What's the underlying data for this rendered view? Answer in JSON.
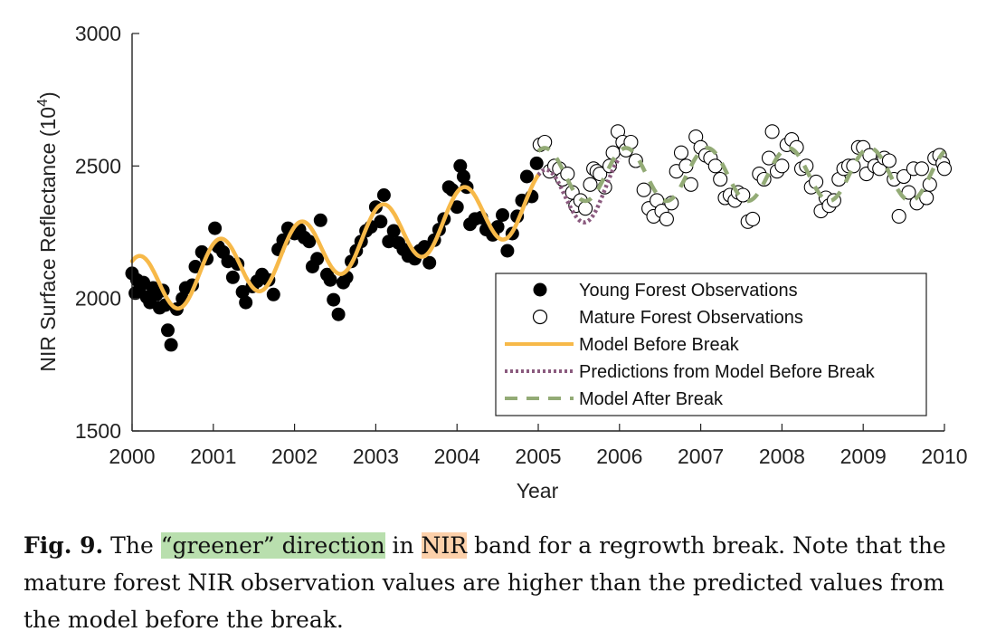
{
  "chart_data": {
    "type": "scatter",
    "xlabel": "Year",
    "ylabel": "NIR Surface Reflectance (10",
    "ylabel_exponent": "4",
    "ylabel_close": ")",
    "xlim": [
      2000,
      2010
    ],
    "ylim": [
      1500,
      3000
    ],
    "x_ticks": [
      2000,
      2001,
      2002,
      2003,
      2004,
      2005,
      2006,
      2007,
      2008,
      2009,
      2010
    ],
    "y_ticks": [
      1500,
      2000,
      2500,
      3000
    ],
    "grid": false,
    "legend_position": "lower-right",
    "series": [
      {
        "name": "Young Forest Observations",
        "kind": "points",
        "marker": "filled-circle",
        "color": "#000000",
        "points": [
          [
            2000.0,
            2095
          ],
          [
            2000.04,
            2020
          ],
          [
            2000.06,
            2070
          ],
          [
            2000.1,
            2045
          ],
          [
            2000.14,
            2060
          ],
          [
            2000.18,
            2005
          ],
          [
            2000.22,
            1985
          ],
          [
            2000.26,
            2040
          ],
          [
            2000.3,
            2015
          ],
          [
            2000.34,
            1965
          ],
          [
            2000.38,
            2030
          ],
          [
            2000.41,
            1975
          ],
          [
            2000.44,
            1880
          ],
          [
            2000.48,
            1825
          ],
          [
            2000.55,
            1960
          ],
          [
            2000.62,
            2000
          ],
          [
            2000.66,
            2040
          ],
          [
            2000.74,
            2050
          ],
          [
            2000.78,
            2120
          ],
          [
            2000.86,
            2175
          ],
          [
            2000.92,
            2150
          ],
          [
            2001.02,
            2265
          ],
          [
            2001.06,
            2195
          ],
          [
            2001.12,
            2175
          ],
          [
            2001.18,
            2140
          ],
          [
            2001.24,
            2080
          ],
          [
            2001.3,
            2130
          ],
          [
            2001.36,
            2025
          ],
          [
            2001.4,
            1985
          ],
          [
            2001.48,
            2045
          ],
          [
            2001.54,
            2065
          ],
          [
            2001.6,
            2090
          ],
          [
            2001.68,
            2070
          ],
          [
            2001.74,
            2015
          ],
          [
            2001.8,
            2185
          ],
          [
            2001.86,
            2220
          ],
          [
            2001.92,
            2265
          ],
          [
            2002.0,
            2245
          ],
          [
            2002.06,
            2260
          ],
          [
            2002.12,
            2230
          ],
          [
            2002.18,
            2215
          ],
          [
            2002.22,
            2120
          ],
          [
            2002.28,
            2150
          ],
          [
            2002.32,
            2295
          ],
          [
            2002.4,
            2090
          ],
          [
            2002.44,
            2070
          ],
          [
            2002.48,
            1995
          ],
          [
            2002.54,
            1940
          ],
          [
            2002.6,
            2060
          ],
          [
            2002.64,
            2080
          ],
          [
            2002.7,
            2140
          ],
          [
            2002.76,
            2180
          ],
          [
            2002.82,
            2215
          ],
          [
            2002.88,
            2255
          ],
          [
            2002.94,
            2270
          ],
          [
            2003.0,
            2345
          ],
          [
            2003.06,
            2290
          ],
          [
            2003.1,
            2390
          ],
          [
            2003.16,
            2215
          ],
          [
            2003.22,
            2255
          ],
          [
            2003.28,
            2210
          ],
          [
            2003.34,
            2185
          ],
          [
            2003.4,
            2160
          ],
          [
            2003.48,
            2150
          ],
          [
            2003.54,
            2180
          ],
          [
            2003.6,
            2195
          ],
          [
            2003.66,
            2135
          ],
          [
            2003.72,
            2220
          ],
          [
            2003.78,
            2260
          ],
          [
            2003.84,
            2300
          ],
          [
            2003.9,
            2420
          ],
          [
            2003.94,
            2410
          ],
          [
            2004.0,
            2345
          ],
          [
            2004.04,
            2500
          ],
          [
            2004.08,
            2460
          ],
          [
            2004.12,
            2420
          ],
          [
            2004.16,
            2280
          ],
          [
            2004.22,
            2300
          ],
          [
            2004.3,
            2305
          ],
          [
            2004.36,
            2260
          ],
          [
            2004.44,
            2240
          ],
          [
            2004.5,
            2270
          ],
          [
            2004.56,
            2315
          ],
          [
            2004.62,
            2180
          ],
          [
            2004.68,
            2245
          ],
          [
            2004.74,
            2310
          ],
          [
            2004.8,
            2370
          ],
          [
            2004.86,
            2460
          ],
          [
            2004.92,
            2385
          ],
          [
            2004.98,
            2510
          ]
        ]
      },
      {
        "name": "Mature Forest Observations",
        "kind": "points",
        "marker": "open-circle",
        "color": "#000000",
        "points": [
          [
            2005.02,
            2580
          ],
          [
            2005.08,
            2590
          ],
          [
            2005.14,
            2480
          ],
          [
            2005.2,
            2500
          ],
          [
            2005.26,
            2490
          ],
          [
            2005.3,
            2450
          ],
          [
            2005.36,
            2470
          ],
          [
            2005.42,
            2400
          ],
          [
            2005.46,
            2350
          ],
          [
            2005.52,
            2370
          ],
          [
            2005.58,
            2340
          ],
          [
            2005.64,
            2430
          ],
          [
            2005.68,
            2490
          ],
          [
            2005.72,
            2480
          ],
          [
            2005.76,
            2470
          ],
          [
            2005.82,
            2420
          ],
          [
            2005.88,
            2500
          ],
          [
            2005.92,
            2550
          ],
          [
            2005.98,
            2630
          ],
          [
            2006.04,
            2590
          ],
          [
            2006.08,
            2560
          ],
          [
            2006.14,
            2590
          ],
          [
            2006.2,
            2520
          ],
          [
            2006.3,
            2410
          ],
          [
            2006.36,
            2340
          ],
          [
            2006.42,
            2310
          ],
          [
            2006.46,
            2370
          ],
          [
            2006.52,
            2330
          ],
          [
            2006.58,
            2300
          ],
          [
            2006.64,
            2360
          ],
          [
            2006.7,
            2480
          ],
          [
            2006.76,
            2550
          ],
          [
            2006.82,
            2500
          ],
          [
            2006.88,
            2430
          ],
          [
            2006.94,
            2610
          ],
          [
            2007.0,
            2570
          ],
          [
            2007.06,
            2540
          ],
          [
            2007.12,
            2530
          ],
          [
            2007.18,
            2500
          ],
          [
            2007.24,
            2450
          ],
          [
            2007.3,
            2380
          ],
          [
            2007.36,
            2390
          ],
          [
            2007.42,
            2370
          ],
          [
            2007.46,
            2400
          ],
          [
            2007.52,
            2390
          ],
          [
            2007.58,
            2290
          ],
          [
            2007.64,
            2300
          ],
          [
            2007.72,
            2470
          ],
          [
            2007.78,
            2450
          ],
          [
            2007.84,
            2530
          ],
          [
            2007.88,
            2630
          ],
          [
            2007.94,
            2480
          ],
          [
            2008.0,
            2500
          ],
          [
            2008.06,
            2580
          ],
          [
            2008.12,
            2600
          ],
          [
            2008.18,
            2570
          ],
          [
            2008.24,
            2490
          ],
          [
            2008.3,
            2500
          ],
          [
            2008.36,
            2420
          ],
          [
            2008.42,
            2440
          ],
          [
            2008.48,
            2330
          ],
          [
            2008.54,
            2380
          ],
          [
            2008.58,
            2350
          ],
          [
            2008.64,
            2370
          ],
          [
            2008.7,
            2450
          ],
          [
            2008.76,
            2490
          ],
          [
            2008.82,
            2500
          ],
          [
            2008.88,
            2500
          ],
          [
            2008.94,
            2570
          ],
          [
            2009.0,
            2570
          ],
          [
            2009.04,
            2470
          ],
          [
            2009.08,
            2540
          ],
          [
            2009.14,
            2500
          ],
          [
            2009.2,
            2490
          ],
          [
            2009.26,
            2530
          ],
          [
            2009.32,
            2520
          ],
          [
            2009.38,
            2450
          ],
          [
            2009.44,
            2310
          ],
          [
            2009.5,
            2460
          ],
          [
            2009.56,
            2400
          ],
          [
            2009.62,
            2490
          ],
          [
            2009.66,
            2360
          ],
          [
            2009.72,
            2490
          ],
          [
            2009.78,
            2380
          ],
          [
            2009.82,
            2430
          ],
          [
            2009.88,
            2530
          ],
          [
            2009.94,
            2540
          ],
          [
            2009.98,
            2510
          ],
          [
            2010.0,
            2490
          ]
        ]
      },
      {
        "name": "Model Before Break",
        "kind": "line",
        "style": "solid",
        "color": "#f7b949",
        "x_range": [
          2000.0,
          2005.0
        ],
        "model": {
          "intercept": 2040,
          "slope": 65,
          "amplitude": 115,
          "peak_phase": 0.08
        }
      },
      {
        "name": "Predictions from Model Before Break",
        "kind": "line",
        "style": "dotted",
        "color": "#8a5a7e",
        "x_range": [
          2005.0,
          2006.0
        ],
        "model": {
          "intercept": 2040,
          "slope": 65,
          "amplitude": 115,
          "peak_phase": 0.08
        }
      },
      {
        "name": "Model After Break",
        "kind": "line",
        "style": "dashed",
        "color": "#93ab76",
        "x_range": [
          2005.0,
          2010.0
        ],
        "model": {
          "intercept": 2468,
          "slope": 0,
          "amplitude": 100,
          "peak_phase": 0.08
        }
      }
    ]
  },
  "caption": {
    "label": "Fig. 9.",
    "text_before": " The ",
    "highlight_green": "“greener” direction",
    "text_middle": " in ",
    "highlight_orange": "NIR",
    "text_after": " band for a regrowth break. Note that the mature forest NIR observation values are higher than the predicted values from the model before the break."
  },
  "colors": {
    "highlight_green": "#b9dfae",
    "highlight_orange": "#fcd0aa"
  }
}
